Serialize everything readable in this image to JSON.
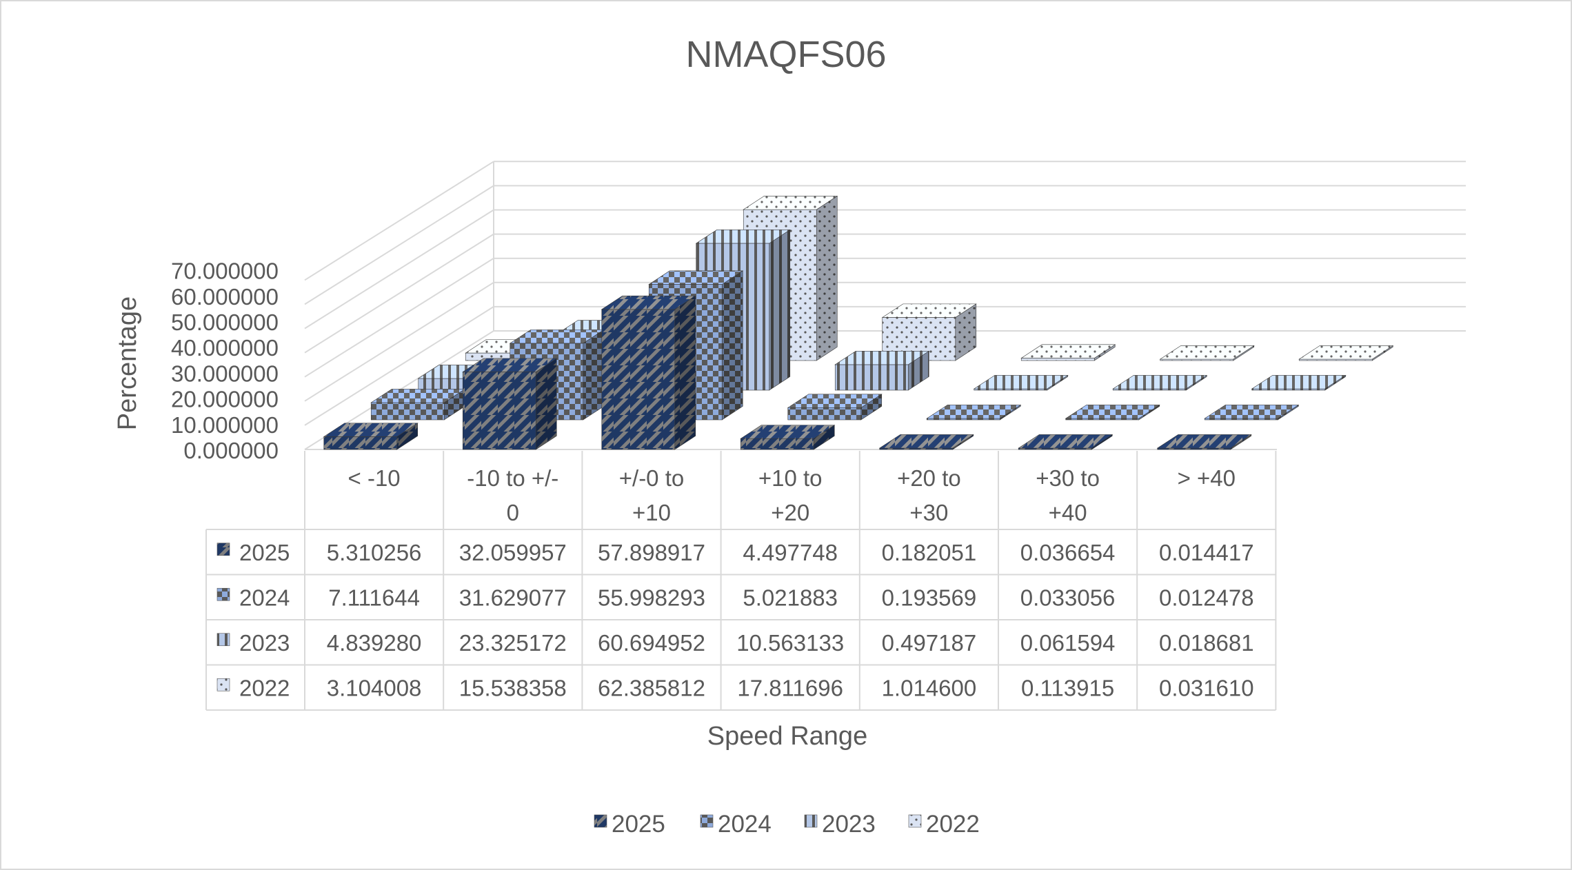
{
  "chart_data": {
    "type": "bar",
    "variant": "3d-column-with-data-table",
    "title": "NMAQFS06",
    "xlabel": "Speed Range",
    "ylabel": "Percentage",
    "categories": [
      "< -10",
      "-10 to +/-0",
      "+/-0 to +10",
      "+10 to +20",
      "+20 to +30",
      "+30 to +40",
      "> +40"
    ],
    "category_label_lines": [
      [
        "< -10"
      ],
      [
        "-10 to +/-",
        "0"
      ],
      [
        "+/-0 to",
        "+10"
      ],
      [
        "+10 to",
        "+20"
      ],
      [
        "+20 to",
        "+30"
      ],
      [
        "+30 to",
        "+40"
      ],
      [
        "> +40"
      ]
    ],
    "yticks": [
      "0.000000",
      "10.000000",
      "20.000000",
      "30.000000",
      "40.000000",
      "50.000000",
      "60.000000",
      "70.000000"
    ],
    "ylim": [
      0,
      70
    ],
    "grid": true,
    "legend_position": "bottom",
    "series": [
      {
        "name": "2025",
        "pattern": "diagonal",
        "colors": [
          "#1f3864",
          "#808080"
        ],
        "values": [
          5.310256,
          32.059957,
          57.898917,
          4.497748,
          0.182051,
          0.036654,
          0.014417
        ],
        "labels": [
          "5.310256",
          "32.059957",
          "57.898917",
          "4.497748",
          "0.182051",
          "0.036654",
          "0.014417"
        ]
      },
      {
        "name": "2024",
        "pattern": "checker",
        "colors": [
          "#8eaadb",
          "#595959"
        ],
        "values": [
          7.111644,
          31.629077,
          55.998293,
          5.021883,
          0.193569,
          0.033056,
          0.012478
        ],
        "labels": [
          "7.111644",
          "31.629077",
          "55.998293",
          "5.021883",
          "0.193569",
          "0.033056",
          "0.012478"
        ]
      },
      {
        "name": "2023",
        "pattern": "vertical",
        "colors": [
          "#b4c7e7",
          "#595959"
        ],
        "values": [
          4.83928,
          23.325172,
          60.694952,
          10.563133,
          0.497187,
          0.061594,
          0.018681
        ],
        "labels": [
          "4.839280",
          "23.325172",
          "60.694952",
          "10.563133",
          "0.497187",
          "0.061594",
          "0.018681"
        ]
      },
      {
        "name": "2022",
        "pattern": "dots",
        "colors": [
          "#dae3f3",
          "#595959"
        ],
        "values": [
          3.104008,
          15.538358,
          62.385812,
          17.811696,
          1.0146,
          0.113915,
          0.03161
        ],
        "labels": [
          "3.104008",
          "15.538358",
          "62.385812",
          "17.811696",
          "1.014600",
          "0.113915",
          "0.031610"
        ]
      }
    ]
  }
}
